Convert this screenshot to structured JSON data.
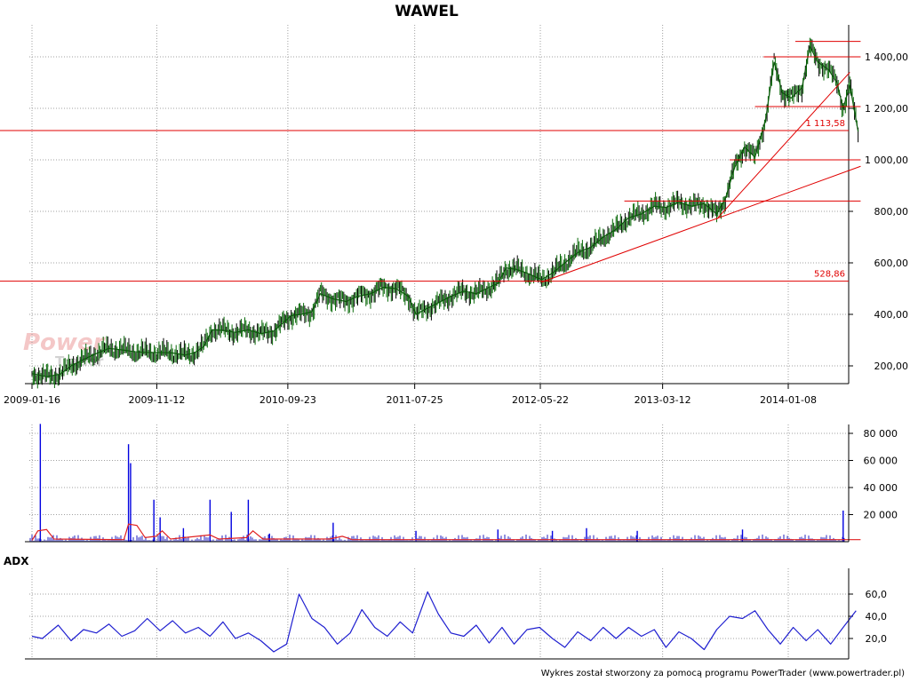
{
  "chart_data": [
    {
      "type": "candlestick",
      "title": "WAWEL",
      "x_ticks": [
        "2009-01-16",
        "2009-11-12",
        "2010-09-23",
        "2011-07-25",
        "2012-05-22",
        "2013-03-12",
        "2014-01-08"
      ],
      "y_ticks": [
        "200,00",
        "400,00",
        "600,00",
        "800,00",
        "1 000,00",
        "1 200,00",
        "1 400,00"
      ],
      "ylim": [
        150,
        1470
      ],
      "grid": true,
      "series": [
        {
          "values": [
            {
              "x": "2009-01-16",
              "y": 170
            },
            {
              "x": "2009-02-20",
              "y": 158
            },
            {
              "x": "2009-03-25",
              "y": 168
            },
            {
              "x": "2009-04-20",
              "y": 200
            },
            {
              "x": "2009-05-20",
              "y": 225
            },
            {
              "x": "2009-06-20",
              "y": 248
            },
            {
              "x": "2009-07-20",
              "y": 268
            },
            {
              "x": "2009-08-20",
              "y": 262
            },
            {
              "x": "2009-09-20",
              "y": 255
            },
            {
              "x": "2009-10-20",
              "y": 252
            },
            {
              "x": "2009-11-20",
              "y": 252
            },
            {
              "x": "2009-12-20",
              "y": 250
            },
            {
              "x": "2010-01-20",
              "y": 242
            },
            {
              "x": "2010-02-10",
              "y": 250
            },
            {
              "x": "2010-03-05",
              "y": 275
            },
            {
              "x": "2010-03-25",
              "y": 340
            },
            {
              "x": "2010-04-20",
              "y": 338
            },
            {
              "x": "2010-05-20",
              "y": 330
            },
            {
              "x": "2010-06-20",
              "y": 340
            },
            {
              "x": "2010-07-20",
              "y": 325
            },
            {
              "x": "2010-08-20",
              "y": 335
            },
            {
              "x": "2010-09-10",
              "y": 365
            },
            {
              "x": "2010-10-01",
              "y": 395
            },
            {
              "x": "2010-10-25",
              "y": 400
            },
            {
              "x": "2010-11-20",
              "y": 410
            },
            {
              "x": "2010-12-10",
              "y": 480
            },
            {
              "x": "2011-01-10",
              "y": 460
            },
            {
              "x": "2011-02-10",
              "y": 450
            },
            {
              "x": "2011-03-10",
              "y": 470
            },
            {
              "x": "2011-04-10",
              "y": 480
            },
            {
              "x": "2011-05-10",
              "y": 505
            },
            {
              "x": "2011-06-10",
              "y": 500
            },
            {
              "x": "2011-07-10",
              "y": 470
            },
            {
              "x": "2011-07-28",
              "y": 400
            },
            {
              "x": "2011-08-20",
              "y": 420
            },
            {
              "x": "2011-09-20",
              "y": 445
            },
            {
              "x": "2011-10-20",
              "y": 470
            },
            {
              "x": "2011-11-20",
              "y": 490
            },
            {
              "x": "2011-12-20",
              "y": 480
            },
            {
              "x": "2012-01-20",
              "y": 505
            },
            {
              "x": "2012-02-10",
              "y": 520
            },
            {
              "x": "2012-03-01",
              "y": 580
            },
            {
              "x": "2012-03-25",
              "y": 575
            },
            {
              "x": "2012-04-20",
              "y": 560
            },
            {
              "x": "2012-05-25",
              "y": 535
            },
            {
              "x": "2012-06-20",
              "y": 560
            },
            {
              "x": "2012-07-20",
              "y": 600
            },
            {
              "x": "2012-08-20",
              "y": 640
            },
            {
              "x": "2012-09-20",
              "y": 660
            },
            {
              "x": "2012-10-20",
              "y": 700
            },
            {
              "x": "2012-11-20",
              "y": 730
            },
            {
              "x": "2012-12-20",
              "y": 775
            },
            {
              "x": "2013-01-20",
              "y": 790
            },
            {
              "x": "2013-02-20",
              "y": 820
            },
            {
              "x": "2013-03-20",
              "y": 815
            },
            {
              "x": "2013-04-20",
              "y": 835
            },
            {
              "x": "2013-05-20",
              "y": 820
            },
            {
              "x": "2013-06-20",
              "y": 830
            },
            {
              "x": "2013-07-20",
              "y": 790
            },
            {
              "x": "2013-08-10",
              "y": 850
            },
            {
              "x": "2013-09-01",
              "y": 970
            },
            {
              "x": "2013-09-25",
              "y": 1050
            },
            {
              "x": "2013-10-20",
              "y": 1010
            },
            {
              "x": "2013-11-15",
              "y": 1160
            },
            {
              "x": "2013-12-05",
              "y": 1380
            },
            {
              "x": "2013-12-25",
              "y": 1260
            },
            {
              "x": "2014-01-15",
              "y": 1240
            },
            {
              "x": "2014-02-10",
              "y": 1280
            },
            {
              "x": "2014-03-01",
              "y": 1440
            },
            {
              "x": "2014-03-20",
              "y": 1380
            },
            {
              "x": "2014-04-15",
              "y": 1350
            },
            {
              "x": "2014-05-05",
              "y": 1300
            },
            {
              "x": "2014-05-20",
              "y": 1200
            },
            {
              "x": "2014-06-05",
              "y": 1290
            },
            {
              "x": "2014-06-25",
              "y": 1110
            }
          ]
        }
      ],
      "annotations": [
        {
          "type": "hline",
          "y": 1113.58,
          "label": "1 113,58"
        },
        {
          "type": "hline",
          "y": 528.86,
          "label": "528,86"
        },
        {
          "type": "hsegment",
          "y": 1460,
          "x_start": "2014-01-25",
          "x_end": "2014-07-01"
        },
        {
          "type": "hsegment",
          "y": 1400,
          "x_start": "2013-11-10",
          "x_end": "2014-07-01"
        },
        {
          "type": "hsegment",
          "y": 1207,
          "x_start": "2013-10-20",
          "x_end": "2014-07-01"
        },
        {
          "type": "hsegment",
          "y": 1000,
          "x_start": "2013-08-20",
          "x_end": "2014-07-01"
        },
        {
          "type": "hsegment",
          "y": 840,
          "x_start": "2012-12-10",
          "x_end": "2014-07-01"
        },
        {
          "type": "trendline",
          "x_start": "2012-05-25",
          "y_start": 525,
          "x_end": "2014-07-01",
          "y_end": 975
        },
        {
          "type": "trendline",
          "x_start": "2013-07-20",
          "y_start": 770,
          "x_end": "2014-06-05",
          "y_end": 1340
        }
      ]
    },
    {
      "type": "bar",
      "y_ticks": [
        "20 000",
        "40 000",
        "60 000",
        "80 000"
      ],
      "ylim": [
        0,
        100000
      ],
      "grid": true,
      "series": [
        {
          "values": [
            {
              "x": "2009-02-05",
              "y": 87000
            },
            {
              "x": "2009-09-05",
              "y": 72000
            },
            {
              "x": "2009-09-10",
              "y": 58000
            },
            {
              "x": "2009-11-05",
              "y": 31000
            },
            {
              "x": "2009-11-20",
              "y": 18000
            },
            {
              "x": "2010-01-15",
              "y": 10000
            },
            {
              "x": "2010-03-20",
              "y": 31000
            },
            {
              "x": "2010-05-10",
              "y": 22000
            },
            {
              "x": "2010-06-20",
              "y": 31000
            },
            {
              "x": "2010-08-10",
              "y": 6000
            },
            {
              "x": "2011-01-10",
              "y": 14000
            },
            {
              "x": "2011-07-28",
              "y": 8000
            },
            {
              "x": "2012-02-10",
              "y": 9000
            },
            {
              "x": "2012-06-20",
              "y": 8000
            },
            {
              "x": "2012-09-10",
              "y": 10000
            },
            {
              "x": "2013-01-10",
              "y": 8000
            },
            {
              "x": "2013-09-20",
              "y": 9000
            },
            {
              "x": "2014-05-20",
              "y": 23000
            }
          ]
        },
        {
          "type": "line",
          "values": [
            {
              "x": "2009-01-16",
              "y": 1000
            },
            {
              "x": "2009-01-30",
              "y": 8000
            },
            {
              "x": "2009-02-20",
              "y": 9000
            },
            {
              "x": "2009-03-10",
              "y": 2000
            },
            {
              "x": "2009-08-25",
              "y": 1500
            },
            {
              "x": "2009-09-05",
              "y": 13000
            },
            {
              "x": "2009-09-25",
              "y": 12000
            },
            {
              "x": "2009-10-15",
              "y": 3000
            },
            {
              "x": "2009-11-10",
              "y": 4000
            },
            {
              "x": "2009-11-25",
              "y": 8000
            },
            {
              "x": "2009-12-15",
              "y": 2000
            },
            {
              "x": "2010-03-20",
              "y": 5000
            },
            {
              "x": "2010-04-10",
              "y": 2000
            },
            {
              "x": "2010-06-15",
              "y": 3000
            },
            {
              "x": "2010-07-01",
              "y": 8000
            },
            {
              "x": "2010-07-25",
              "y": 2000
            },
            {
              "x": "2011-01-01",
              "y": 2000
            },
            {
              "x": "2011-02-01",
              "y": 4000
            },
            {
              "x": "2011-02-25",
              "y": 1500
            },
            {
              "x": "2014-07-01",
              "y": 1500
            }
          ]
        }
      ]
    },
    {
      "type": "line",
      "title": "ADX",
      "y_ticks": [
        "20,0",
        "40,0",
        "60,0"
      ],
      "ylim": [
        0,
        70
      ],
      "grid": true,
      "series": [
        {
          "name": "ADX",
          "values": [
            {
              "x": "2009-01-16",
              "y": 22
            },
            {
              "x": "2009-02-10",
              "y": 20
            },
            {
              "x": "2009-03-20",
              "y": 32
            },
            {
              "x": "2009-04-20",
              "y": 18
            },
            {
              "x": "2009-05-20",
              "y": 28
            },
            {
              "x": "2009-06-20",
              "y": 25
            },
            {
              "x": "2009-07-20",
              "y": 33
            },
            {
              "x": "2009-08-20",
              "y": 22
            },
            {
              "x": "2009-09-20",
              "y": 27
            },
            {
              "x": "2009-10-20",
              "y": 38
            },
            {
              "x": "2009-11-20",
              "y": 27
            },
            {
              "x": "2009-12-20",
              "y": 36
            },
            {
              "x": "2010-01-20",
              "y": 25
            },
            {
              "x": "2010-02-20",
              "y": 30
            },
            {
              "x": "2010-03-20",
              "y": 22
            },
            {
              "x": "2010-04-20",
              "y": 35
            },
            {
              "x": "2010-05-20",
              "y": 20
            },
            {
              "x": "2010-06-20",
              "y": 25
            },
            {
              "x": "2010-07-20",
              "y": 18
            },
            {
              "x": "2010-08-20",
              "y": 8
            },
            {
              "x": "2010-09-20",
              "y": 15
            },
            {
              "x": "2010-10-20",
              "y": 60
            },
            {
              "x": "2010-11-20",
              "y": 38
            },
            {
              "x": "2010-12-20",
              "y": 30
            },
            {
              "x": "2011-01-20",
              "y": 15
            },
            {
              "x": "2011-02-20",
              "y": 25
            },
            {
              "x": "2011-03-20",
              "y": 46
            },
            {
              "x": "2011-04-20",
              "y": 30
            },
            {
              "x": "2011-05-20",
              "y": 22
            },
            {
              "x": "2011-06-20",
              "y": 35
            },
            {
              "x": "2011-07-20",
              "y": 25
            },
            {
              "x": "2011-08-25",
              "y": 62
            },
            {
              "x": "2011-09-20",
              "y": 42
            },
            {
              "x": "2011-10-20",
              "y": 25
            },
            {
              "x": "2011-11-20",
              "y": 22
            },
            {
              "x": "2011-12-20",
              "y": 32
            },
            {
              "x": "2012-01-20",
              "y": 16
            },
            {
              "x": "2012-02-20",
              "y": 30
            },
            {
              "x": "2012-03-20",
              "y": 15
            },
            {
              "x": "2012-04-20",
              "y": 28
            },
            {
              "x": "2012-05-20",
              "y": 30
            },
            {
              "x": "2012-06-20",
              "y": 20
            },
            {
              "x": "2012-07-20",
              "y": 12
            },
            {
              "x": "2012-08-20",
              "y": 26
            },
            {
              "x": "2012-09-20",
              "y": 18
            },
            {
              "x": "2012-10-20",
              "y": 30
            },
            {
              "x": "2012-11-20",
              "y": 20
            },
            {
              "x": "2012-12-20",
              "y": 30
            },
            {
              "x": "2013-01-20",
              "y": 22
            },
            {
              "x": "2013-02-20",
              "y": 28
            },
            {
              "x": "2013-03-20",
              "y": 12
            },
            {
              "x": "2013-04-20",
              "y": 26
            },
            {
              "x": "2013-05-20",
              "y": 20
            },
            {
              "x": "2013-06-20",
              "y": 10
            },
            {
              "x": "2013-07-20",
              "y": 28
            },
            {
              "x": "2013-08-20",
              "y": 40
            },
            {
              "x": "2013-09-20",
              "y": 38
            },
            {
              "x": "2013-10-20",
              "y": 45
            },
            {
              "x": "2013-11-20",
              "y": 28
            },
            {
              "x": "2013-12-20",
              "y": 15
            },
            {
              "x": "2014-01-20",
              "y": 30
            },
            {
              "x": "2014-02-20",
              "y": 18
            },
            {
              "x": "2014-03-20",
              "y": 28
            },
            {
              "x": "2014-04-20",
              "y": 15
            },
            {
              "x": "2014-05-20",
              "y": 30
            },
            {
              "x": "2014-06-20",
              "y": 45
            }
          ]
        }
      ]
    }
  ],
  "watermark": {
    "line1": "Power",
    "line2": "Trader"
  },
  "footer": "Wykres został stworzony za pomocą programu PowerTrader (www.powertrader.pl)"
}
